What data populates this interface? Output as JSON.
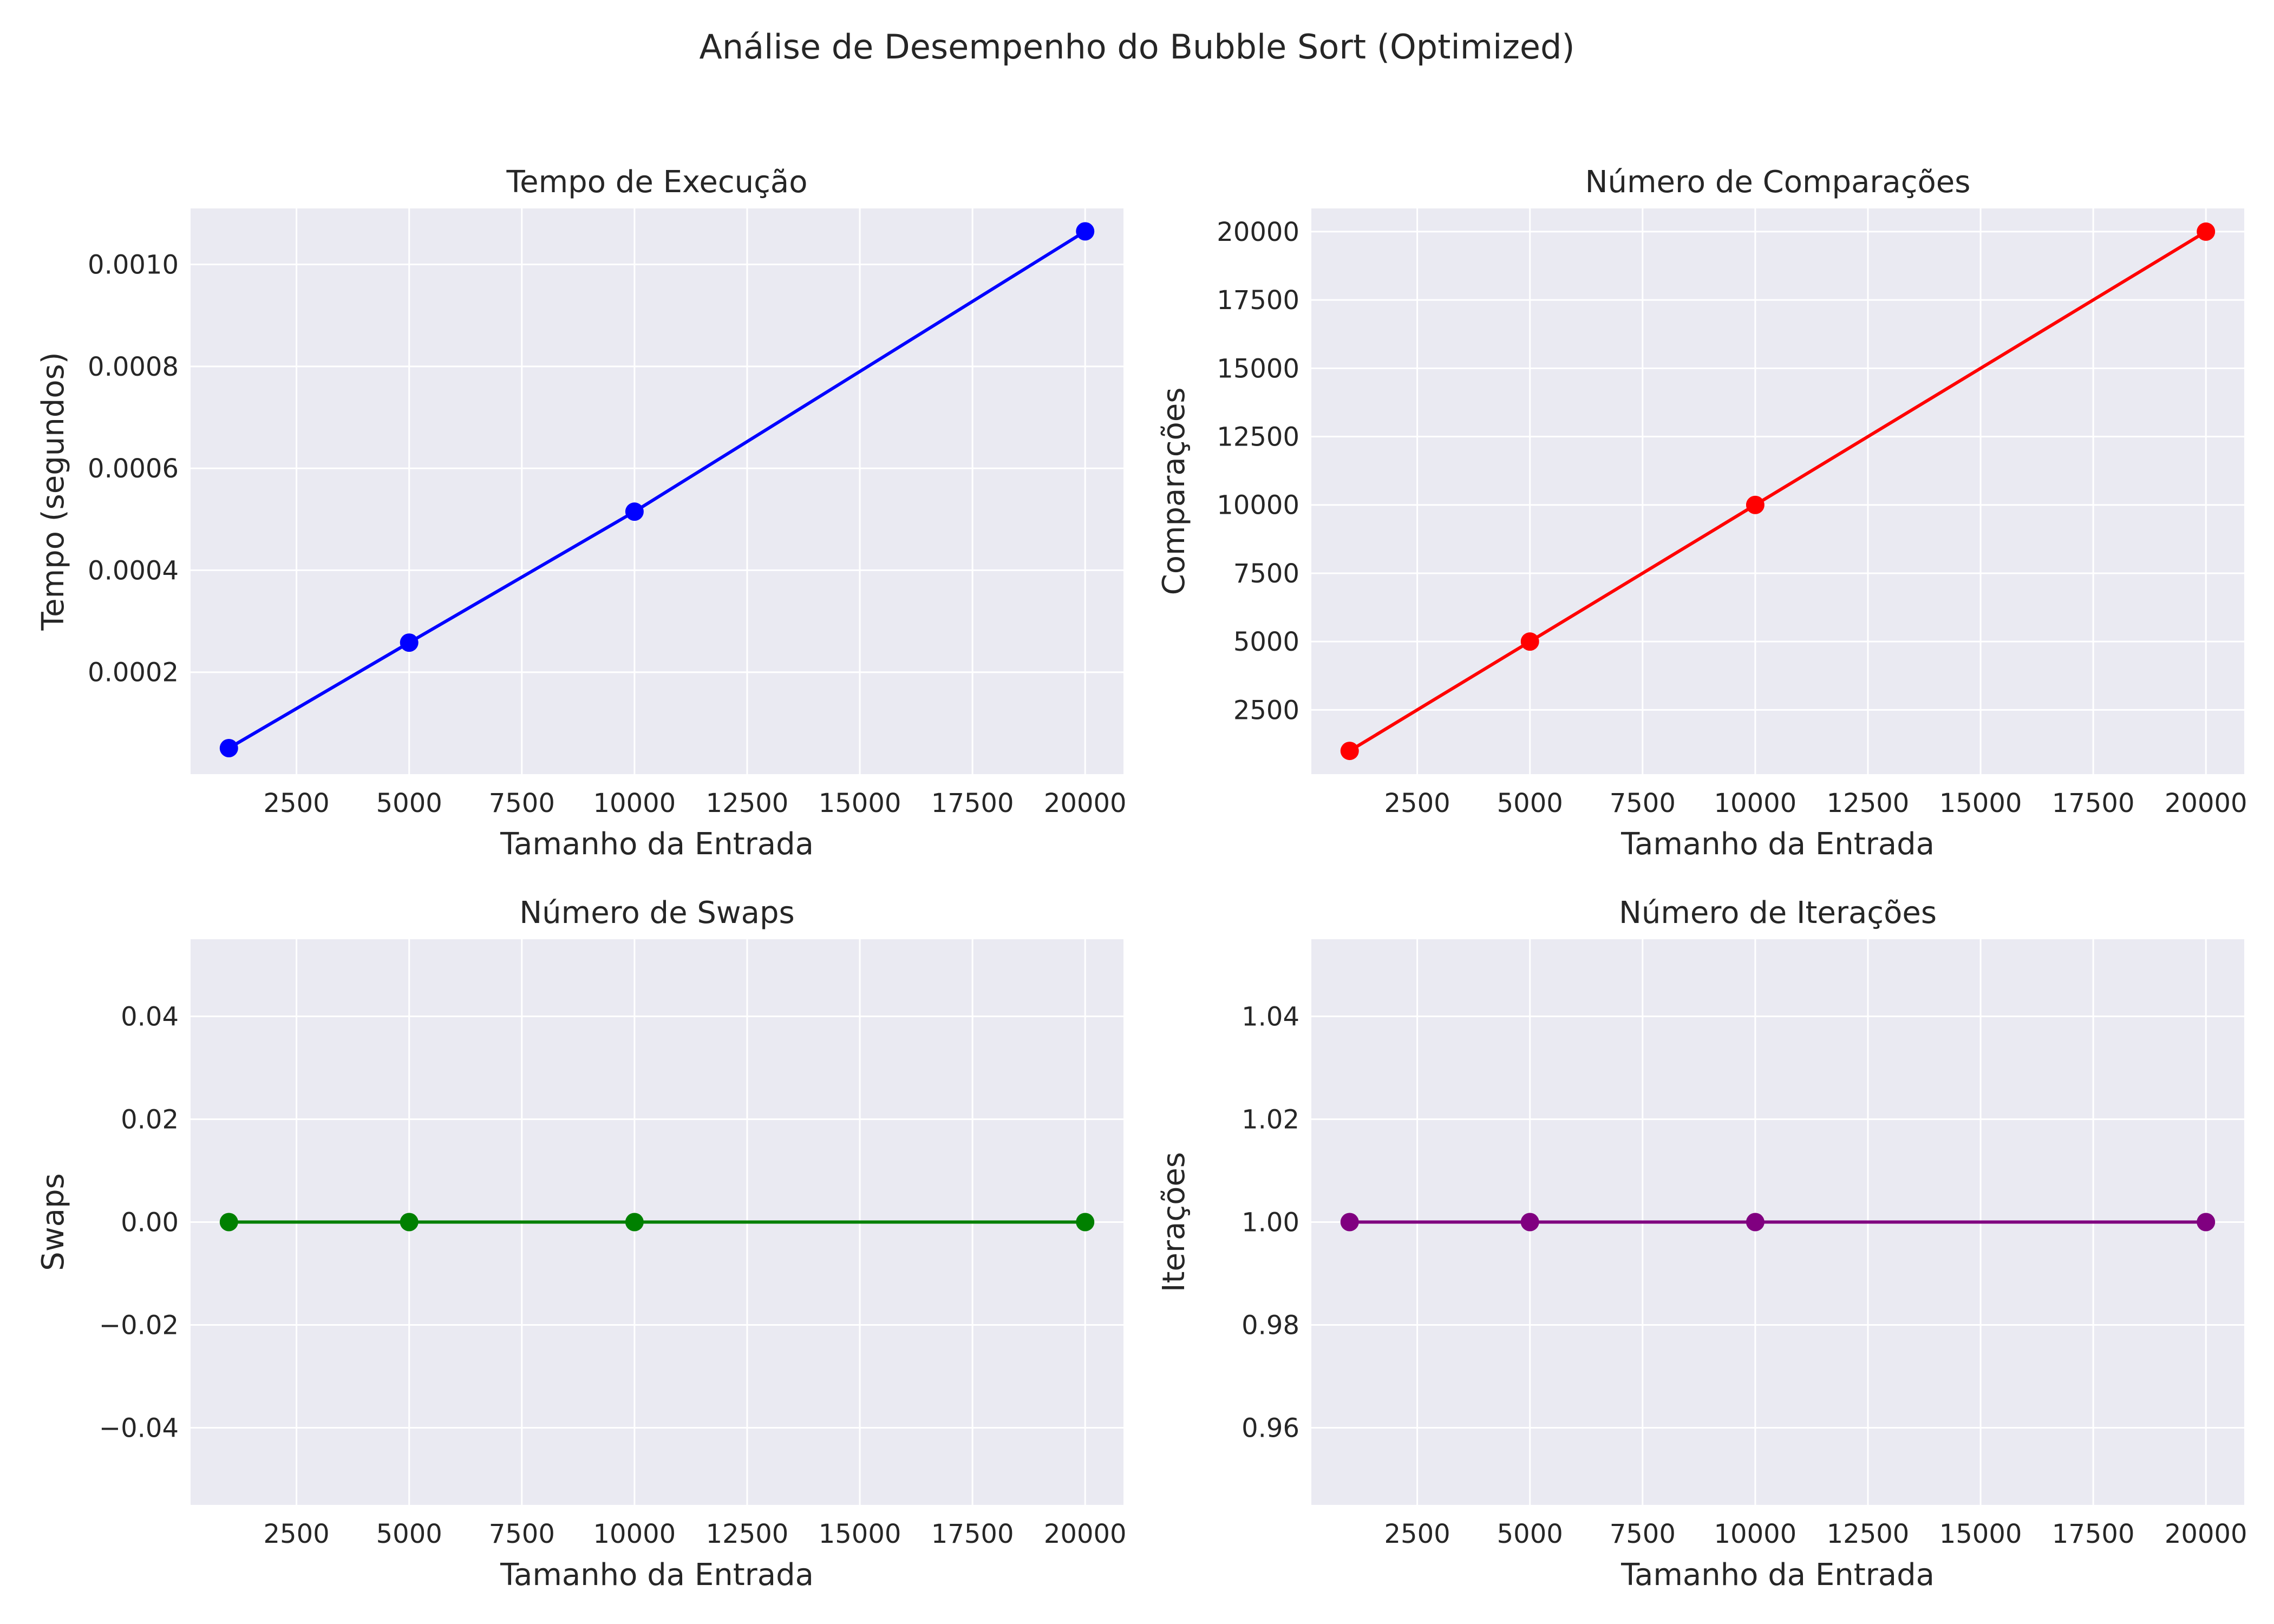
{
  "figure": {
    "title": "Análise de Desempenho do Bubble Sort (Optimized)"
  },
  "chart_data": [
    {
      "type": "line",
      "title": "Tempo de Execução",
      "xlabel": "Tamanho da Entrada",
      "ylabel": "Tempo (segundos)",
      "x": [
        1000,
        5000,
        10000,
        20000
      ],
      "series": [
        {
          "values": [
            5.1e-05,
            0.000258,
            0.000515,
            0.001065
          ],
          "color": "#0000ff"
        }
      ],
      "xlim": [
        150,
        20850
      ],
      "ylim": [
        0.0,
        0.00111
      ],
      "xticks": [
        2500,
        5000,
        7500,
        10000,
        12500,
        15000,
        17500,
        20000
      ],
      "xtick_labels": [
        "2500",
        "5000",
        "7500",
        "10000",
        "12500",
        "15000",
        "17500",
        "20000"
      ],
      "yticks": [
        0.0002,
        0.0004,
        0.0006,
        0.0008,
        0.001
      ],
      "ytick_labels": [
        "0.0002",
        "0.0004",
        "0.0006",
        "0.0008",
        "0.0010"
      ],
      "grid": true
    },
    {
      "type": "line",
      "title": "Número de Comparações",
      "xlabel": "Tamanho da Entrada",
      "ylabel": "Comparações",
      "x": [
        1000,
        5000,
        10000,
        20000
      ],
      "series": [
        {
          "values": [
            1000,
            5000,
            10000,
            20000
          ],
          "color": "#ff0000"
        }
      ],
      "xlim": [
        150,
        20850
      ],
      "ylim": [
        150,
        20850
      ],
      "xticks": [
        2500,
        5000,
        7500,
        10000,
        12500,
        15000,
        17500,
        20000
      ],
      "xtick_labels": [
        "2500",
        "5000",
        "7500",
        "10000",
        "12500",
        "15000",
        "17500",
        "20000"
      ],
      "yticks": [
        2500,
        5000,
        7500,
        10000,
        12500,
        15000,
        17500,
        20000
      ],
      "ytick_labels": [
        "2500",
        "5000",
        "7500",
        "10000",
        "12500",
        "15000",
        "17500",
        "20000"
      ],
      "grid": true
    },
    {
      "type": "line",
      "title": "Número de Swaps",
      "xlabel": "Tamanho da Entrada",
      "ylabel": "Swaps",
      "x": [
        1000,
        5000,
        10000,
        20000
      ],
      "series": [
        {
          "values": [
            0,
            0,
            0,
            0
          ],
          "color": "#008000"
        }
      ],
      "xlim": [
        150,
        20850
      ],
      "ylim": [
        -0.055,
        0.055
      ],
      "xticks": [
        2500,
        5000,
        7500,
        10000,
        12500,
        15000,
        17500,
        20000
      ],
      "xtick_labels": [
        "2500",
        "5000",
        "7500",
        "10000",
        "12500",
        "15000",
        "17500",
        "20000"
      ],
      "yticks": [
        -0.04,
        -0.02,
        0.0,
        0.02,
        0.04
      ],
      "ytick_labels": [
        "−0.04",
        "−0.02",
        "0.00",
        "0.02",
        "0.04"
      ],
      "grid": true
    },
    {
      "type": "line",
      "title": "Número de Iterações",
      "xlabel": "Tamanho da Entrada",
      "ylabel": "Iterações",
      "x": [
        1000,
        5000,
        10000,
        20000
      ],
      "series": [
        {
          "values": [
            1,
            1,
            1,
            1
          ],
          "color": "#800080"
        }
      ],
      "xlim": [
        150,
        20850
      ],
      "ylim": [
        0.945,
        1.055
      ],
      "xticks": [
        2500,
        5000,
        7500,
        10000,
        12500,
        15000,
        17500,
        20000
      ],
      "xtick_labels": [
        "2500",
        "5000",
        "7500",
        "10000",
        "12500",
        "15000",
        "17500",
        "20000"
      ],
      "yticks": [
        0.96,
        0.98,
        1.0,
        1.02,
        1.04
      ],
      "ytick_labels": [
        "0.96",
        "0.98",
        "1.00",
        "1.02",
        "1.04"
      ],
      "grid": true
    }
  ]
}
